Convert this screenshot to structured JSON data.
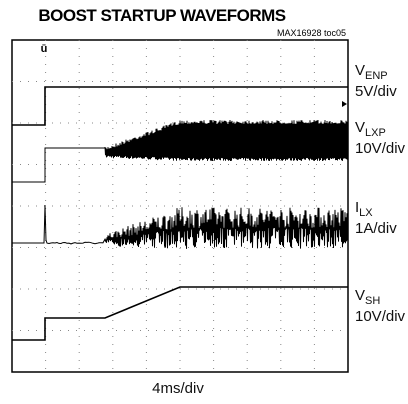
{
  "header": {
    "title": "BOOST STARTUP WAVEFORMS",
    "code": "MAX16928 toc05"
  },
  "channels": [
    {
      "name": "V",
      "sub": "ENP",
      "scale": "5V/div"
    },
    {
      "name": "V",
      "sub": "LXP",
      "scale": "10V/div"
    },
    {
      "name": "I",
      "sub": "LX",
      "scale": "1A/div"
    },
    {
      "name": "V",
      "sub": "SH",
      "scale": "10V/div"
    }
  ],
  "time_scale": "4ms/div"
}
